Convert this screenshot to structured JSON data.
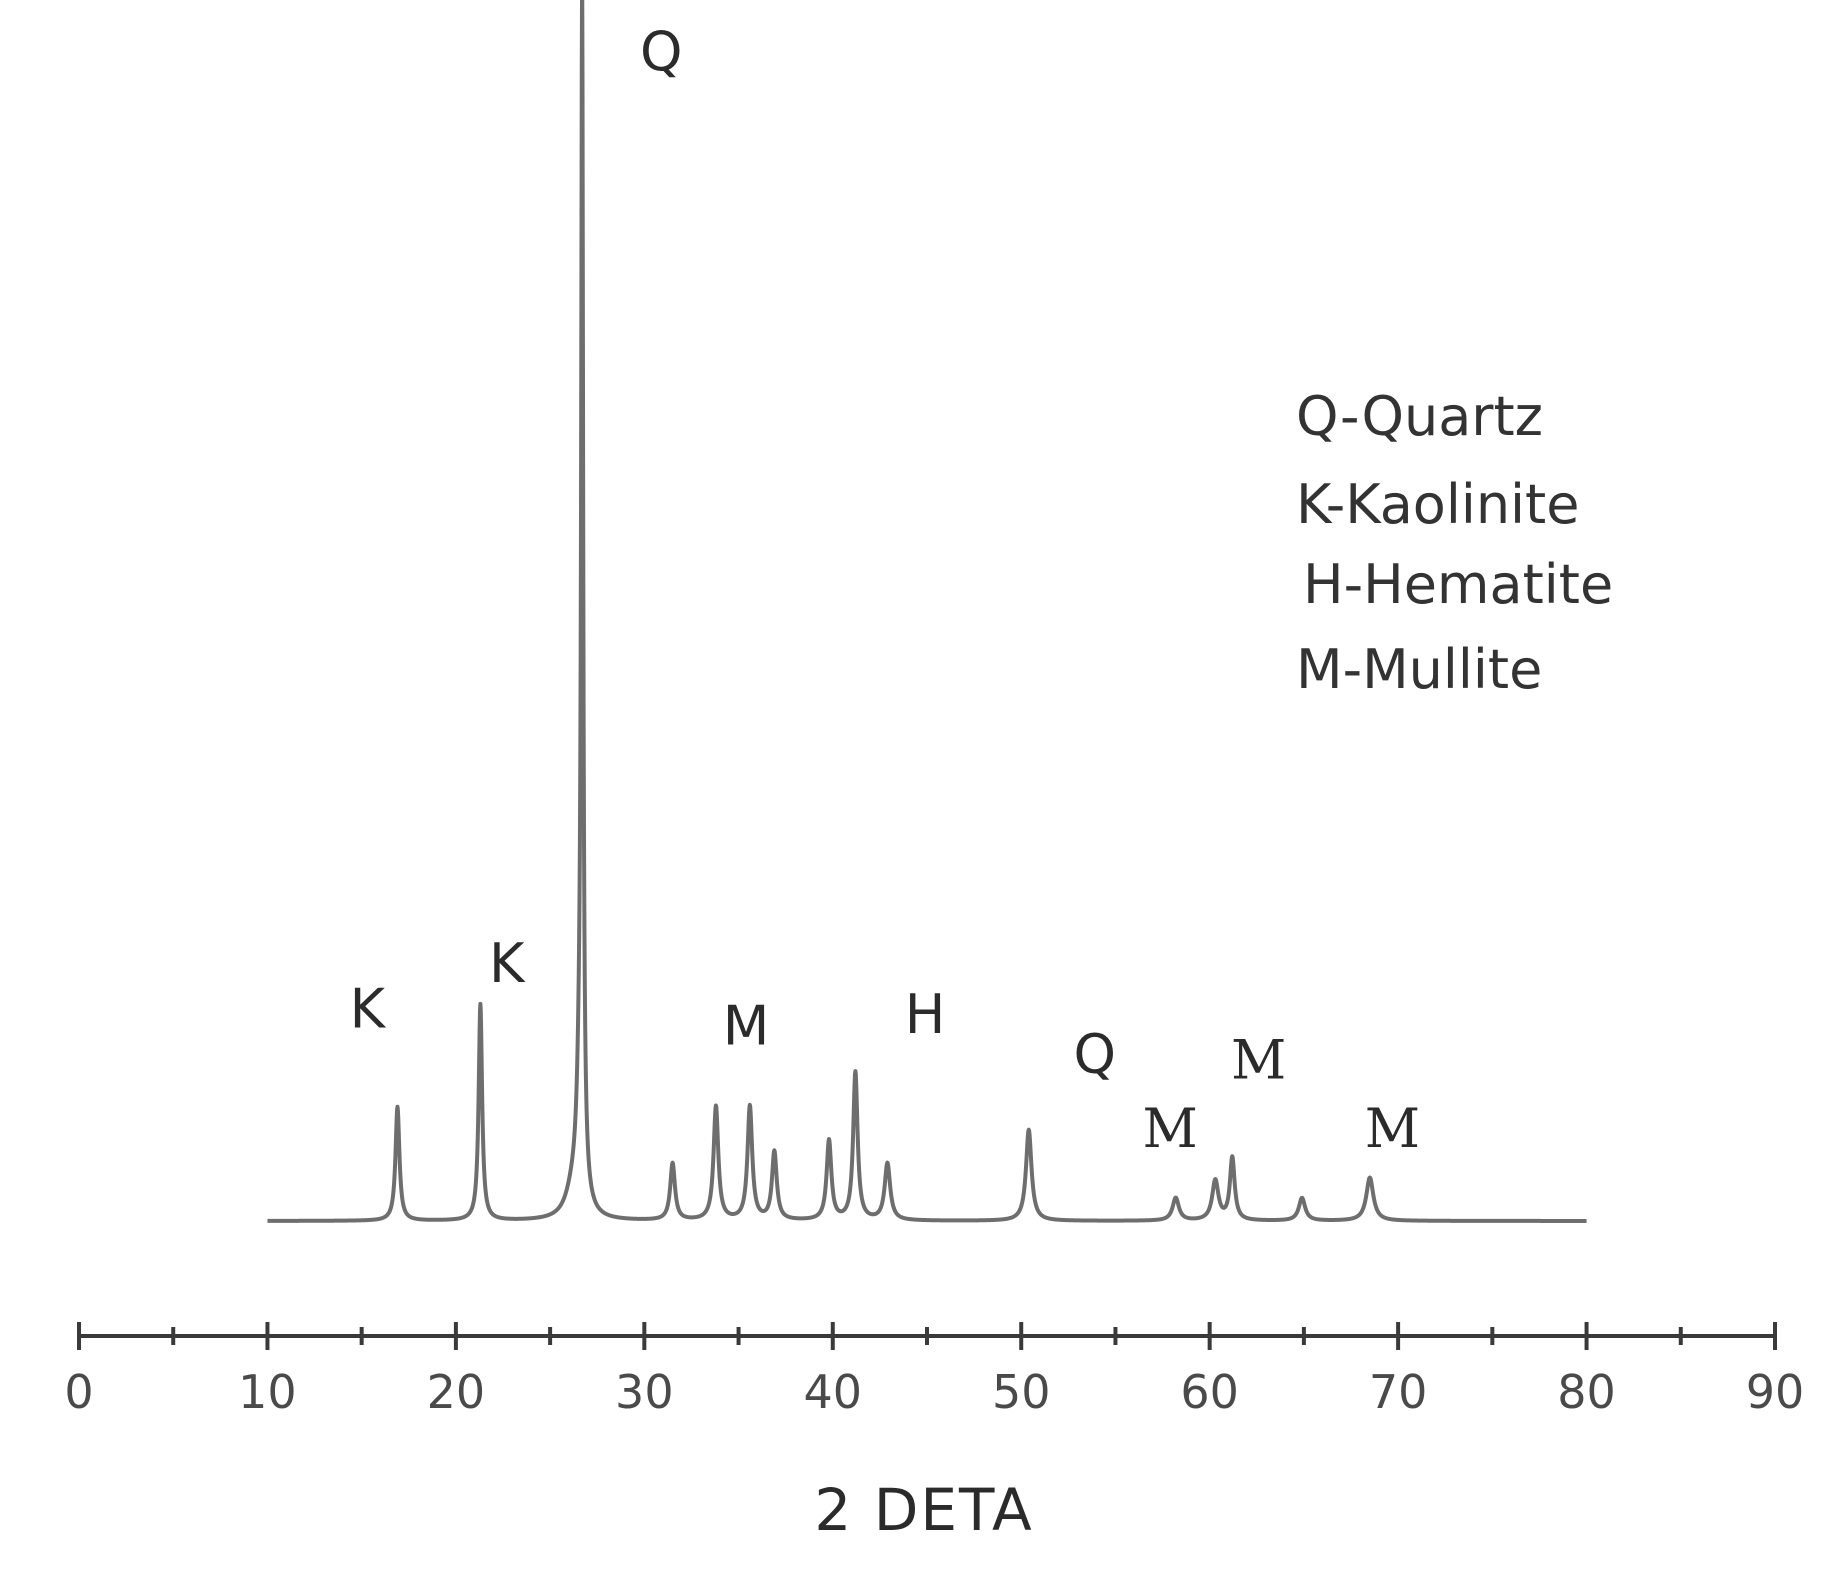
{
  "chart_data": {
    "type": "line",
    "title": "",
    "xlabel": "2 DETA",
    "ylabel": "",
    "xlim": [
      0,
      90
    ],
    "x_ticks": [
      "0",
      "10",
      "20",
      "30",
      "40",
      "50",
      "60",
      "70",
      "80",
      "90"
    ],
    "grid": false,
    "legend_position": "top-right",
    "legend": [
      "Q-Quartz",
      "K-Kaolinite",
      "H-Hematite",
      "M-Mullite"
    ],
    "series": [
      {
        "x_range": [
          10,
          80
        ],
        "baseline": 0,
        "peaks": [
          {
            "x": 16.9,
            "intensity": 0.1,
            "width": 0.25
          },
          {
            "x": 21.3,
            "intensity": 0.19,
            "width": 0.22
          },
          {
            "x": 26.2,
            "intensity": 0.02,
            "width": 0.9
          },
          {
            "x": 26.6,
            "intensity": 0.12,
            "width": 0.4
          },
          {
            "x": 26.7,
            "intensity": 1.0,
            "width": 0.12
          },
          {
            "x": 31.5,
            "intensity": 0.05,
            "width": 0.3
          },
          {
            "x": 33.8,
            "intensity": 0.1,
            "width": 0.3
          },
          {
            "x": 35.6,
            "intensity": 0.1,
            "width": 0.3
          },
          {
            "x": 36.9,
            "intensity": 0.06,
            "width": 0.3
          },
          {
            "x": 39.8,
            "intensity": 0.07,
            "width": 0.3
          },
          {
            "x": 41.2,
            "intensity": 0.13,
            "width": 0.28
          },
          {
            "x": 42.9,
            "intensity": 0.05,
            "width": 0.35
          },
          {
            "x": 50.4,
            "intensity": 0.08,
            "width": 0.35
          },
          {
            "x": 58.2,
            "intensity": 0.02,
            "width": 0.4
          },
          {
            "x": 60.3,
            "intensity": 0.035,
            "width": 0.4
          },
          {
            "x": 61.2,
            "intensity": 0.055,
            "width": 0.3
          },
          {
            "x": 64.9,
            "intensity": 0.02,
            "width": 0.4
          },
          {
            "x": 68.5,
            "intensity": 0.038,
            "width": 0.45
          }
        ]
      }
    ],
    "annotations": [
      {
        "text": "Q",
        "x": 30.9,
        "style": "sans",
        "y": 1.01
      },
      {
        "text": "K",
        "x": 15.3,
        "style": "sans",
        "y": 0.17
      },
      {
        "text": "K",
        "x": 22.7,
        "style": "sans",
        "y": 0.21
      },
      {
        "text": "M",
        "x": 35.4,
        "style": "sans",
        "y": 0.155
      },
      {
        "text": "H",
        "x": 44.9,
        "style": "sans",
        "y": 0.165
      },
      {
        "text": "Q",
        "x": 53.9,
        "style": "sans",
        "y": 0.13
      },
      {
        "text": "M",
        "x": 57.9,
        "style": "serif",
        "y": 0.065
      },
      {
        "text": "M",
        "x": 62.6,
        "style": "serif",
        "y": 0.125
      },
      {
        "text": "M",
        "x": 69.7,
        "style": "serif",
        "y": 0.065
      }
    ]
  }
}
